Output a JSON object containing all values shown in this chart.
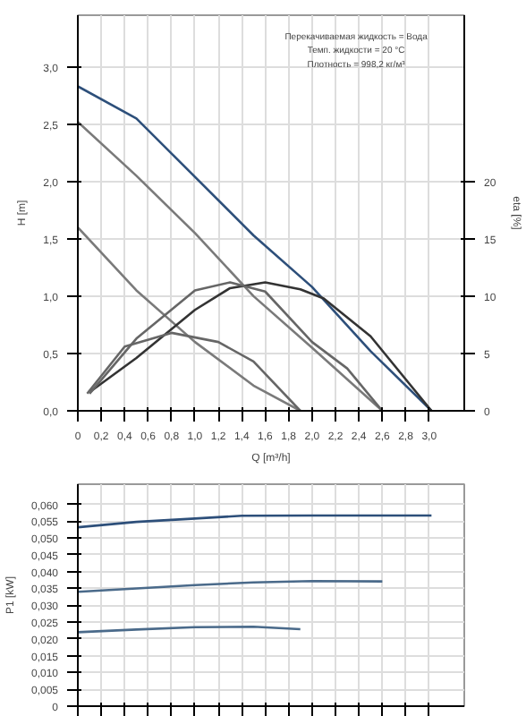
{
  "chart_data": [
    {
      "type": "line",
      "xlabel": "Q [m³/h]",
      "ylabel": "H [m]",
      "y2label": "eta [%]",
      "annotations": [
        "Перекачиваемая жидкость = Вода",
        "Темп. жидкости = 20 °C",
        "Плотность = 998,2 кг/м³"
      ],
      "xlim": [
        0,
        3.3
      ],
      "ylim": [
        0,
        3.45
      ],
      "y2lim": [
        0,
        34.5
      ],
      "xticks": [
        0,
        {
          "value": 0.2,
          "label": "0,2"
        },
        {
          "value": 0.4,
          "label": "0,4"
        },
        {
          "value": 0.6,
          "label": "0,6"
        },
        {
          "value": 0.8,
          "label": "0,8"
        },
        {
          "value": 1.0,
          "label": "1,0"
        },
        {
          "value": 1.2,
          "label": "1,2"
        },
        {
          "value": 1.4,
          "label": "1,4"
        },
        {
          "value": 1.6,
          "label": "1,6"
        },
        {
          "value": 1.8,
          "label": "1,8"
        },
        {
          "value": 2.0,
          "label": "2,0"
        },
        {
          "value": 2.2,
          "label": "2,2"
        },
        {
          "value": 2.4,
          "label": "2,4"
        },
        {
          "value": 2.6,
          "label": "2,6"
        },
        {
          "value": 2.8,
          "label": "2,8"
        },
        {
          "value": 3.0,
          "label": "3,0"
        }
      ],
      "yticks": [
        {
          "value": 0,
          "label": "0,0"
        },
        {
          "value": 0.5,
          "label": "0,5"
        },
        {
          "value": 1.0,
          "label": "1,0"
        },
        {
          "value": 1.5,
          "label": "1,5"
        },
        {
          "value": 2.0,
          "label": "2,0"
        },
        {
          "value": 2.5,
          "label": "2,5"
        },
        {
          "value": 3.0,
          "label": "3,0"
        }
      ],
      "y2ticks": [
        0,
        5,
        10,
        15,
        20
      ],
      "grid": true,
      "line_style": "solid",
      "series": [
        {
          "color": "#2d4f7a",
          "x": [
            0,
            0.5,
            1.0,
            1.5,
            2.0,
            2.5,
            3.02
          ],
          "values": [
            2.83,
            2.55,
            2.04,
            1.53,
            1.08,
            0.52,
            0
          ]
        },
        {
          "color": "#7a7a7a",
          "x": [
            0,
            0.5,
            1.0,
            1.5,
            2.0,
            2.6
          ],
          "values": [
            2.52,
            2.05,
            1.55,
            1.0,
            0.55,
            0
          ]
        },
        {
          "color": "#7a7a7a",
          "x": [
            0,
            0.5,
            1.0,
            1.5,
            1.9
          ],
          "values": [
            1.6,
            1.05,
            0.6,
            0.22,
            0
          ]
        },
        {
          "axis": "y2",
          "color": "#333333",
          "x": [
            0.11,
            0.5,
            1.0,
            1.3,
            1.6,
            1.9,
            2.1,
            2.5,
            3.02
          ],
          "values": [
            1.7,
            4.6,
            8.8,
            10.7,
            11.2,
            10.6,
            9.8,
            6.5,
            0
          ]
        },
        {
          "axis": "y2",
          "color": "#666666",
          "x": [
            0.1,
            0.5,
            1.0,
            1.3,
            1.6,
            2.0,
            2.3,
            2.6
          ],
          "values": [
            1.5,
            6.3,
            10.5,
            11.2,
            10.4,
            6.0,
            3.7,
            0
          ]
        },
        {
          "axis": "y2",
          "color": "#666666",
          "x": [
            0.08,
            0.4,
            0.8,
            1.2,
            1.5,
            1.9
          ],
          "values": [
            1.5,
            5.6,
            6.8,
            6.0,
            4.3,
            0
          ]
        }
      ]
    },
    {
      "type": "line",
      "ylabel": "P1 [kW]",
      "xlim": [
        0,
        3.3
      ],
      "ylim": [
        0,
        0.066
      ],
      "tick_labels": "y",
      "xticks": [
        0,
        0.2,
        0.4,
        0.6,
        0.8,
        1.0,
        1.2,
        1.4,
        1.6,
        1.8,
        2.0,
        2.2,
        2.4,
        2.6,
        2.8,
        3.0
      ],
      "yticks": [
        0,
        {
          "value": 0.005,
          "label": "0,005"
        },
        {
          "value": 0.01,
          "label": "0,010"
        },
        {
          "value": 0.015,
          "label": "0,015"
        },
        {
          "value": 0.02,
          "label": "0,020"
        },
        {
          "value": 0.025,
          "label": "0,025"
        },
        {
          "value": 0.03,
          "label": "0,030"
        },
        {
          "value": 0.035,
          "label": "0,035"
        },
        {
          "value": 0.04,
          "label": "0,040"
        },
        {
          "value": 0.045,
          "label": "0,045"
        },
        {
          "value": 0.05,
          "label": "0,050"
        },
        {
          "value": 0.055,
          "label": "0,055"
        },
        {
          "value": 0.06,
          "label": "0,060"
        }
      ],
      "grid": true,
      "line_style": "solid",
      "series": [
        {
          "color": "#2d4f7a",
          "x": [
            0,
            0.5,
            1.0,
            1.4,
            2.0,
            2.5,
            3.02
          ],
          "values": [
            0.0532,
            0.0548,
            0.0558,
            0.0566,
            0.0567,
            0.0567,
            0.0567
          ]
        },
        {
          "color": "#4a6a8a",
          "x": [
            0,
            0.5,
            1.0,
            1.5,
            2.0,
            2.6
          ],
          "values": [
            0.034,
            0.035,
            0.036,
            0.0368,
            0.0372,
            0.0371
          ]
        },
        {
          "color": "#4a6a8a",
          "x": [
            0,
            0.5,
            1.0,
            1.5,
            1.9
          ],
          "values": [
            0.022,
            0.0228,
            0.0235,
            0.0236,
            0.0229
          ]
        }
      ]
    }
  ]
}
